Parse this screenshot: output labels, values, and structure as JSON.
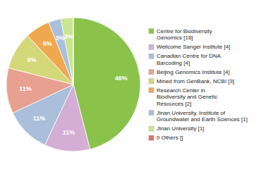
{
  "chart_data": {
    "type": "pie",
    "categories": [
      "Centre for Biodiversity\nGenomics [16]",
      "Wellcome Sanger Institute [4]",
      "Canadian Centre for DNA\nBarcoding [4]",
      "Beijing Genomics Institute [4]",
      "Mined from GenBank, NCBI [3]",
      "Research Center in\nBiodiversity and Genetic\nResources [2]",
      "Jinan University, Institute of\nGroundwater and Earth Sciences [1]",
      "Jinan University [1]",
      "0 Others []"
    ],
    "values": [
      46,
      11,
      11,
      11,
      9,
      6,
      3,
      3,
      0.0002857
    ],
    "value_labels": [
      "46%",
      "11%",
      "11%",
      "11%",
      "9%",
      "6%",
      "3%",
      "3%",
      null
    ],
    "colors": [
      "#8bc34a",
      "#d4aed4",
      "#aabfda",
      "#e8a090",
      "#d4d878",
      "#f0a850",
      "#aabfda",
      "#c8e690",
      "#e07060"
    ],
    "data_labels": true,
    "legend": "right"
  }
}
